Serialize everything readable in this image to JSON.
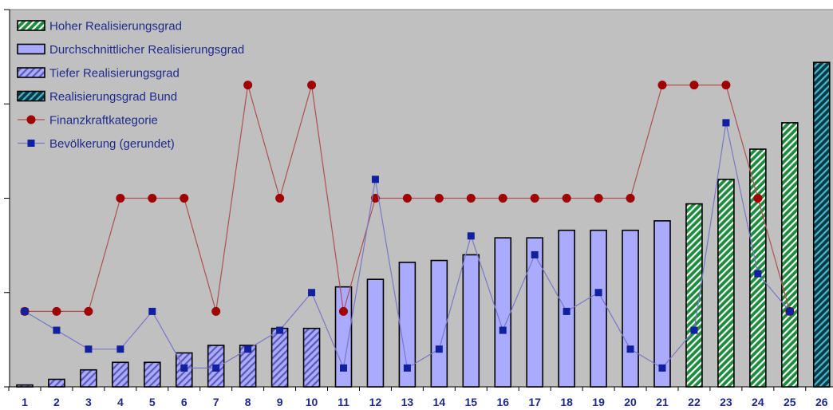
{
  "chart_data": {
    "type": "bar",
    "categories": [
      "1",
      "2",
      "3",
      "4",
      "5",
      "6",
      "7",
      "8",
      "9",
      "10",
      "11",
      "12",
      "13",
      "14",
      "15",
      "16",
      "17",
      "18",
      "19",
      "20",
      "21",
      "22",
      "23",
      "24",
      "25",
      "26"
    ],
    "series": [
      {
        "name": "Realisierungsgrad",
        "values": [
          0.01,
          0.04,
          0.09,
          0.13,
          0.13,
          0.18,
          0.22,
          0.22,
          0.31,
          0.31,
          0.53,
          0.57,
          0.66,
          0.67,
          0.7,
          0.79,
          0.79,
          0.83,
          0.83,
          0.83,
          0.88,
          0.97,
          1.1,
          1.26,
          1.4,
          1.72
        ],
        "groups": [
          "Tief",
          "Tief",
          "Tief",
          "Tief",
          "Tief",
          "Tief",
          "Tief",
          "Tief",
          "Tief",
          "Tief",
          "Durchschnitt",
          "Durchschnitt",
          "Durchschnitt",
          "Durchschnitt",
          "Durchschnitt",
          "Durchschnitt",
          "Durchschnitt",
          "Durchschnitt",
          "Durchschnitt",
          "Durchschnitt",
          "Durchschnitt",
          "Hoch",
          "Hoch",
          "Hoch",
          "Hoch",
          "Bund"
        ]
      },
      {
        "name": "Finanzkraftkategorie",
        "type": "line",
        "values": [
          0.4,
          0.4,
          0.4,
          1.0,
          1.0,
          1.0,
          0.4,
          1.6,
          1.0,
          1.6,
          0.4,
          1.0,
          1.0,
          1.0,
          1.0,
          1.0,
          1.0,
          1.0,
          1.0,
          1.0,
          1.6,
          1.6,
          1.6,
          1.0,
          0.4,
          null
        ]
      },
      {
        "name": "Bevölkerung (gerundet)",
        "type": "line",
        "values": [
          0.4,
          0.3,
          0.2,
          0.2,
          0.4,
          0.1,
          0.1,
          0.2,
          0.3,
          0.5,
          0.1,
          1.1,
          0.1,
          0.2,
          0.8,
          0.3,
          0.7,
          0.4,
          0.5,
          0.2,
          0.1,
          0.3,
          1.4,
          0.6,
          0.4,
          null
        ]
      }
    ],
    "legend": {
      "placement": "top-left",
      "entries": [
        {
          "label": "Hoher Realisierungsgrad",
          "kind": "hatch-green"
        },
        {
          "label": "Durchschnittlicher Realisierungsgrad",
          "kind": "solid-blue"
        },
        {
          "label": "Tiefer Realisierungsgrad",
          "kind": "hatch-blue"
        },
        {
          "label": "Realisierungsgrad Bund",
          "kind": "hatch-teal"
        },
        {
          "label": "Finanzkraftkategorie",
          "kind": "line-red"
        },
        {
          "label": "Bevölkerung (gerundet)",
          "kind": "line-blue"
        }
      ]
    },
    "ylim": [
      0,
      2
    ],
    "yticks": [
      0,
      0.5,
      1,
      1.5,
      2
    ],
    "grid": false,
    "colors": {
      "plot_bg": "#c0c0c0",
      "avg_fill": "#aaaaff",
      "low_fill": "#aaaaff",
      "low_hatch": "#5a5ab4",
      "high_fill": "#1c8c3c",
      "high_hatch": "#ffffff",
      "bund_fill": "#0a3a4a",
      "bund_hatch": "#4ab8c8",
      "red_line": "#b05050",
      "red_marker": "#a00000",
      "blue_line": "#7878c8",
      "blue_marker": "#1020a0",
      "text": "#1f2a8c"
    }
  }
}
